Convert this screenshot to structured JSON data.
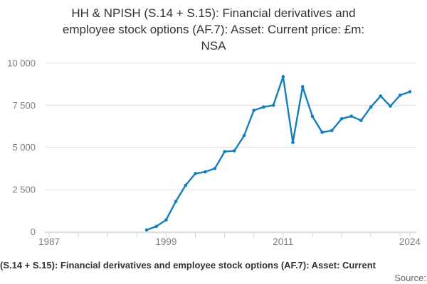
{
  "title": {
    "full_text": "HH & NPISH (S.14 + S.15): Financial derivatives and employee stock options (AF.7): Asset: Current price: £m: NSA",
    "lines": [
      "HH & NPISH (S.14 + S.15): Financial derivatives and",
      "employee stock options (AF.7): Asset: Current price: £m:",
      "NSA"
    ]
  },
  "footer": {
    "caption": "(S.14 + S.15): Financial derivatives and employee stock options (AF.7): Asset: Current",
    "source_label": "Source:"
  },
  "colors": {
    "line": "#147dbe",
    "marker": "#147dbe",
    "grid": "#e0e0e0",
    "axis": "#c9d6e3",
    "tick_label": "#7d7d7d",
    "title_text": "#333333"
  },
  "chart_data": {
    "type": "line",
    "title": "HH & NPISH (S.14 + S.15): Financial derivatives and employee stock options (AF.7): Asset: Current price: £m: NSA",
    "xlabel": "",
    "ylabel": "",
    "grid": true,
    "legend": false,
    "markers": true,
    "xlim": [
      1987,
      2024
    ],
    "ylim": [
      0,
      10000
    ],
    "y_ticks": [
      0,
      2500,
      5000,
      7500,
      10000
    ],
    "y_tick_labels": [
      "0",
      "2 500",
      "5 000",
      "7 500",
      "10 000"
    ],
    "x_tick_years": [
      1987,
      1990,
      1993,
      1996,
      1999,
      2002,
      2005,
      2008,
      2011,
      2014,
      2017,
      2020,
      2023,
      2024
    ],
    "x_label_years": [
      "1987",
      "1999",
      "2011",
      "2024"
    ],
    "x": [
      1997,
      1998,
      1999,
      2000,
      2001,
      2002,
      2003,
      2004,
      2005,
      2006,
      2007,
      2008,
      2009,
      2010,
      2011,
      2012,
      2013,
      2014,
      2015,
      2016,
      2017,
      2018,
      2019,
      2020,
      2021,
      2022,
      2023,
      2024
    ],
    "values": [
      100,
      310,
      700,
      1800,
      2750,
      3450,
      3550,
      3750,
      4750,
      4800,
      5700,
      7200,
      7400,
      7500,
      9200,
      5300,
      8600,
      6850,
      5900,
      6000,
      6700,
      6850,
      6600,
      7400,
      8050,
      7450,
      8100,
      8300
    ]
  }
}
